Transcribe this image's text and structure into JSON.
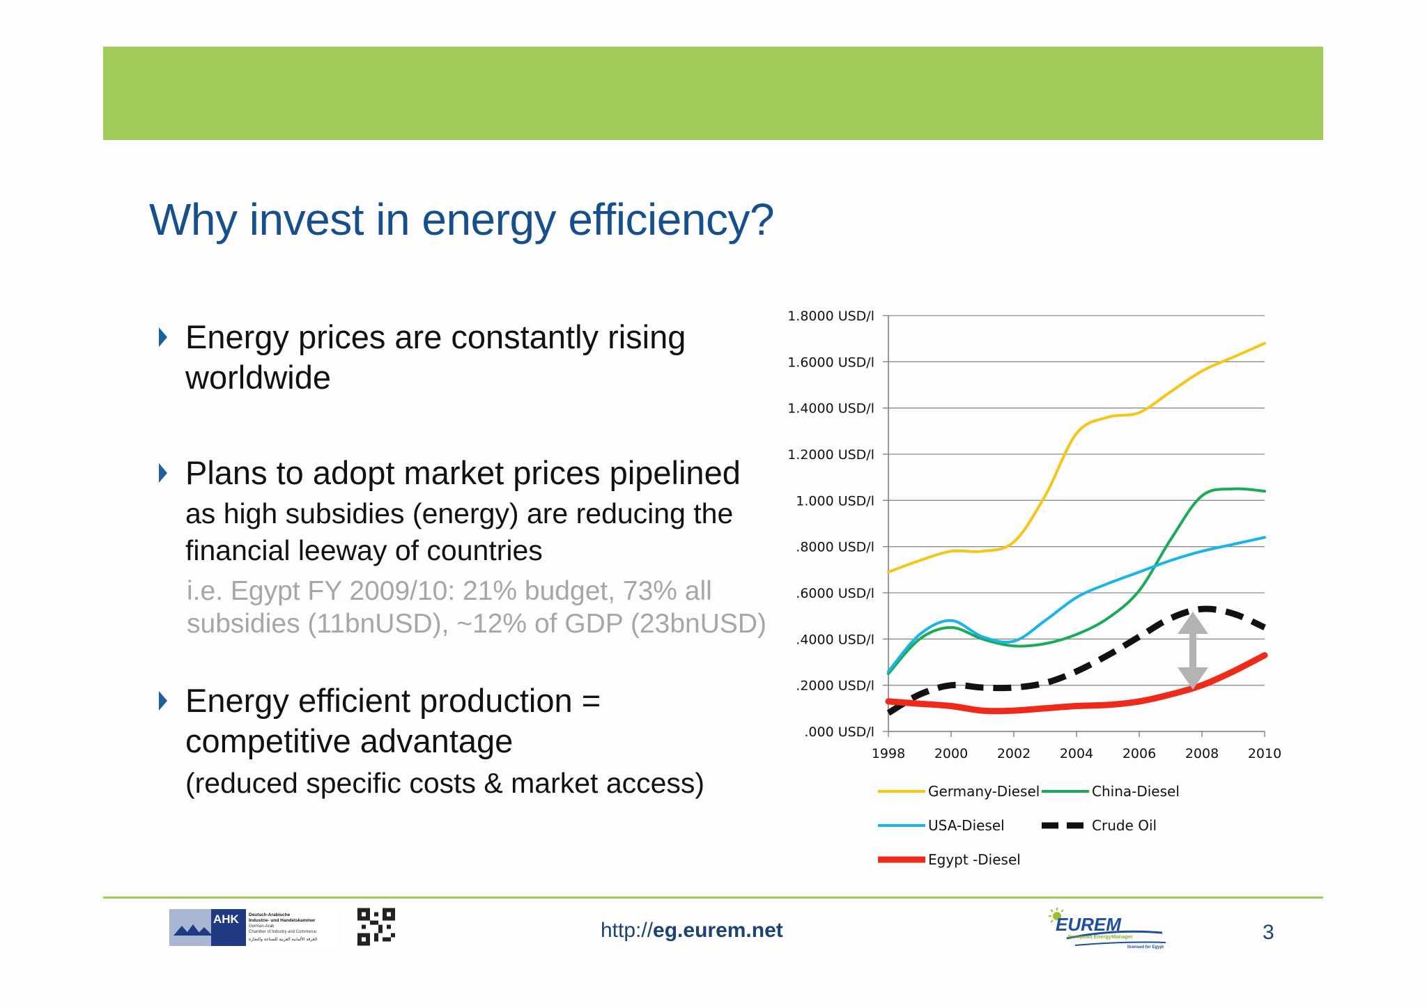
{
  "slide": {
    "title": "Why invest in energy efficiency?",
    "page_number": "3",
    "url_prefix": "http://",
    "url_domain": "eg.eurem.net"
  },
  "bullets": [
    {
      "lines": [
        "Energy prices are constantly rising",
        "worldwide"
      ]
    },
    {
      "lines": [
        "Plans to adopt market prices pipelined"
      ],
      "sub_lines": [
        "as high subsidies (energy) are reducing the",
        "financial leeway of countries"
      ],
      "note_lines": [
        "i.e. Egypt FY 2009/10: 21% budget, 73% all",
        "subsidies (11bnUSD), ~12%  of GDP (23bnUSD)"
      ]
    },
    {
      "lines": [
        "Energy efficient production =",
        "competitive advantage"
      ],
      "sub_lines": [
        "(reduced specific costs & market access)"
      ]
    }
  ],
  "logos": {
    "ahk_abbr": "AHK",
    "ahk_line1": "Deutsch-Arabische",
    "ahk_line2": "Industrie- und Handelskammer",
    "ahk_line3": "German-Arab",
    "ahk_line4": "Chamber of Industry and Commerce",
    "ahk_line5": "الغرفة الألمانية العربية للصناعة والتجارة",
    "eurem_name": "EUREM",
    "eurem_tag": "European EnergyManager",
    "eurem_license": "licensed for Egypt"
  },
  "chart_data": {
    "type": "line",
    "x": [
      1998,
      1999,
      2000,
      2001,
      2002,
      2003,
      2004,
      2005,
      2006,
      2007,
      2008,
      2009,
      2010
    ],
    "x_tick_labels": [
      "1998",
      "2000",
      "2002",
      "2004",
      "2006",
      "2008",
      "2010"
    ],
    "y_tick_values": [
      0,
      0.2,
      0.4,
      0.6,
      0.8,
      1.0,
      1.2,
      1.4,
      1.6,
      1.8
    ],
    "y_tick_labels": [
      ".000 USD/l",
      ".2000 USD/l",
      ".4000 USD/l",
      ".6000 USD/l",
      ".8000 USD/l",
      "1.000 USD/l",
      "1.2000 USD/l",
      "1.4000 USD/l",
      "1.6000 USD/l",
      "1.8000 USD/l"
    ],
    "ylim": [
      0,
      1.8
    ],
    "xlim": [
      1998,
      2010
    ],
    "grid": true,
    "legend_position": "bottom",
    "series": [
      {
        "name": "Germany-Diesel",
        "color": "#f5c518",
        "style": "solid",
        "width": 4,
        "values": [
          0.69,
          0.74,
          0.78,
          0.78,
          0.82,
          1.02,
          1.29,
          1.36,
          1.38,
          1.47,
          1.56,
          1.62,
          1.68
        ]
      },
      {
        "name": "China-Diesel",
        "color": "#1aab55",
        "style": "solid",
        "width": 4,
        "values": [
          0.25,
          0.4,
          0.45,
          0.4,
          0.37,
          0.38,
          0.42,
          0.49,
          0.61,
          0.83,
          1.02,
          1.05,
          1.04
        ]
      },
      {
        "name": "USA-Diesel",
        "color": "#1ab4e8",
        "style": "solid",
        "width": 4,
        "values": [
          0.26,
          0.42,
          0.48,
          0.41,
          0.39,
          0.48,
          0.58,
          0.64,
          0.69,
          0.74,
          0.78,
          0.81,
          0.84
        ]
      },
      {
        "name": "Crude Oil",
        "color": "#111111",
        "style": "dashed",
        "width": 9,
        "values": [
          0.08,
          0.16,
          0.2,
          0.19,
          0.19,
          0.21,
          0.26,
          0.33,
          0.41,
          0.49,
          0.53,
          0.51,
          0.45
        ]
      },
      {
        "name": "Egypt -Diesel",
        "color": "#ee2a1b",
        "style": "solid",
        "width": 9,
        "values": [
          0.13,
          0.12,
          0.11,
          0.09,
          0.09,
          0.1,
          0.11,
          0.115,
          0.13,
          0.16,
          0.2,
          0.26,
          0.33
        ]
      }
    ]
  }
}
